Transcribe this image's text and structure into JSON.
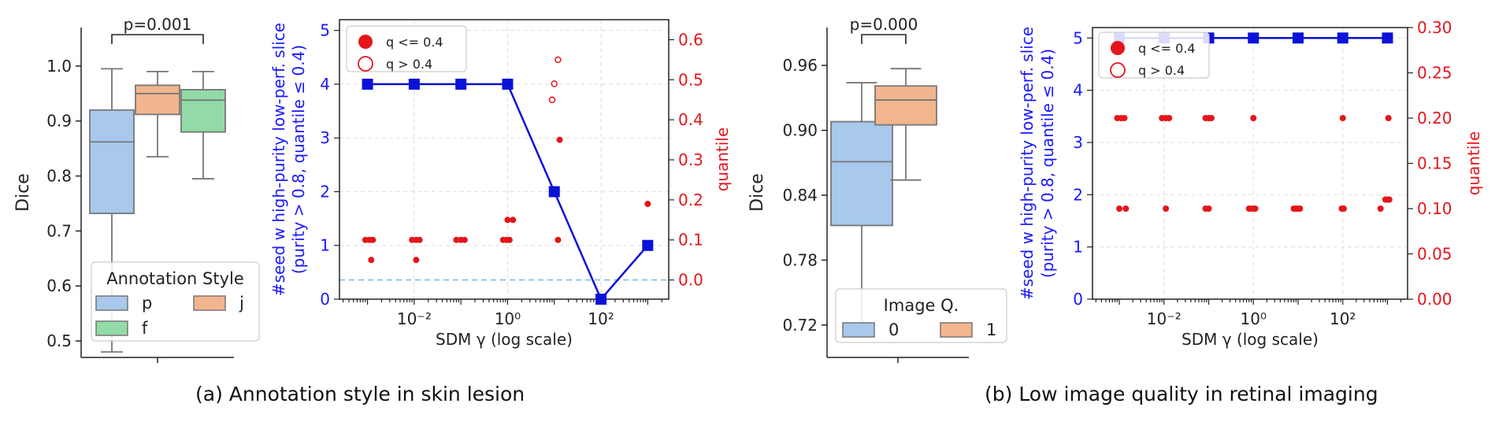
{
  "captions": {
    "a": "(a) Annotation style in skin lesion",
    "b": "(b) Low image quality in retinal imaging"
  },
  "colors": {
    "box_p": "#a8c8ec",
    "box_j": "#f2b58e",
    "box_f": "#92dba6",
    "box_0": "#a8c8ec",
    "box_1": "#f2b58e",
    "seed_line": "#0a12d8",
    "quantile_points": "#e4161b",
    "left_axis_text": "#1a1aff",
    "right_axis_text": "#e4161b",
    "threshold_line": "#86b8dc"
  },
  "chart_data": [
    {
      "type": "box",
      "ylabel": "Dice",
      "ylim": [
        0.47,
        1.07
      ],
      "yticks": [
        0.5,
        0.6,
        0.7,
        0.8,
        0.9,
        1.0
      ],
      "ytick_labels": [
        "0.5",
        "0.6",
        "0.7",
        "0.8",
        "0.9",
        "1.0"
      ],
      "annotation": "p=0.001",
      "legend_title": "Annotation Style",
      "legend_position": "lower-left",
      "boxes": [
        {
          "name": "p",
          "whislo": 0.48,
          "q1": 0.732,
          "median": 0.862,
          "q3": 0.92,
          "whishi": 0.995
        },
        {
          "name": "j",
          "whislo": 0.835,
          "q1": 0.912,
          "median": 0.95,
          "q3": 0.965,
          "whishi": 0.99
        },
        {
          "name": "f",
          "whislo": 0.795,
          "q1": 0.88,
          "median": 0.938,
          "q3": 0.957,
          "whishi": 0.99
        }
      ]
    },
    {
      "type": "line+scatter",
      "xlabel": "SDM γ (log scale)",
      "ylabel": "#seed w high-purity low-perf. slice (purity > 0.8, quantile ≤ 0.4)",
      "ylabel_line1": "#seed w high-purity low-perf. slice",
      "ylabel_line2": "(purity > 0.8, quantile ≤ 0.4)",
      "y2label": "quantile",
      "xscale": "log",
      "xlim_log10": [
        -3.6,
        3.45
      ],
      "xticks": [
        "10⁻²",
        "10⁰",
        "10²"
      ],
      "ylim": [
        0,
        5.2
      ],
      "yticks": [
        "0",
        "1",
        "2",
        "3",
        "4",
        "5"
      ],
      "y2lim": [
        -0.048,
        0.65
      ],
      "y2ticks": [
        "0.0",
        "0.1",
        "0.2",
        "0.3",
        "0.4",
        "0.5",
        "0.6"
      ],
      "threshold_y2": 0.0,
      "legend": {
        "position": "top-left",
        "entries": [
          "q <= 0.4",
          "q > 0.4"
        ]
      },
      "grid": true,
      "seed_series": {
        "x": [
          0.001,
          0.01,
          0.1,
          1,
          10,
          100,
          1000
        ],
        "y": [
          4,
          4,
          4,
          4,
          2,
          0,
          1
        ]
      },
      "quantile_filled": {
        "x": [
          0.0009,
          0.0011,
          0.0013,
          0.0012,
          0.009,
          0.011,
          0.013,
          0.011,
          0.08,
          0.1,
          0.12,
          0.8,
          0.95,
          1.1,
          1.0,
          1.3,
          13,
          12,
          1000
        ],
        "y": [
          0.1,
          0.1,
          0.1,
          0.05,
          0.1,
          0.1,
          0.1,
          0.05,
          0.1,
          0.1,
          0.1,
          0.1,
          0.1,
          0.1,
          0.15,
          0.15,
          0.35,
          0.1,
          0.19
        ]
      },
      "quantile_hollow": {
        "x": [
          9,
          10,
          12
        ],
        "y": [
          0.45,
          0.49,
          0.55
        ]
      }
    },
    {
      "type": "box",
      "ylabel": "Dice",
      "ylim": [
        0.69,
        0.995
      ],
      "yticks": [
        0.72,
        0.78,
        0.84,
        0.9,
        0.96
      ],
      "ytick_labels": [
        "0.72",
        "0.78",
        "0.84",
        "0.90",
        "0.96"
      ],
      "annotation": "p=0.000",
      "legend_title": "Image Q.",
      "legend_position": "lower-center",
      "boxes": [
        {
          "name": "0",
          "whislo": 0.72,
          "q1": 0.812,
          "median": 0.871,
          "q3": 0.908,
          "whishi": 0.944
        },
        {
          "name": "1",
          "whislo": 0.854,
          "q1": 0.905,
          "median": 0.928,
          "q3": 0.941,
          "whishi": 0.957
        }
      ]
    },
    {
      "type": "line+scatter",
      "xlabel": "SDM γ (log scale)",
      "ylabel": "#seed w high-purity low-perf. slice (purity > 0.8, quantile ≤ 0.4)",
      "ylabel_line1": "#seed w high-purity low-perf. slice",
      "ylabel_line2": "(purity > 0.8, quantile ≤ 0.4)",
      "y2label": "quantile",
      "xscale": "log",
      "xlim_log10": [
        -3.6,
        3.45
      ],
      "xticks": [
        "10⁻²",
        "10⁰",
        "10²"
      ],
      "ylim": [
        0,
        5.2
      ],
      "yticks": [
        "0",
        "1",
        "2",
        "3",
        "4",
        "5"
      ],
      "y2lim": [
        0,
        0.3
      ],
      "y2ticks": [
        "0.00",
        "0.05",
        "0.10",
        "0.15",
        "0.20",
        "0.25",
        "0.30"
      ],
      "legend": {
        "position": "top-left",
        "entries": [
          "q <= 0.4",
          "q > 0.4"
        ]
      },
      "grid": true,
      "seed_series": {
        "x": [
          0.001,
          0.01,
          0.1,
          1,
          10,
          100,
          1000
        ],
        "y": [
          5,
          5,
          5,
          5,
          5,
          5,
          5
        ]
      },
      "quantile_filled": {
        "x": [
          0.0009,
          0.0011,
          0.0013,
          0.009,
          0.011,
          0.013,
          0.085,
          0.1,
          0.115,
          1.0,
          100,
          1050,
          0.001,
          0.0014,
          0.011,
          0.085,
          0.1,
          0.8,
          0.95,
          1.1,
          8,
          9,
          10,
          11,
          95,
          105,
          700,
          900,
          1000,
          1100
        ],
        "y": [
          0.2,
          0.2,
          0.2,
          0.2,
          0.2,
          0.2,
          0.2,
          0.2,
          0.2,
          0.2,
          0.2,
          0.2,
          0.1,
          0.1,
          0.1,
          0.1,
          0.1,
          0.1,
          0.1,
          0.1,
          0.1,
          0.1,
          0.1,
          0.1,
          0.1,
          0.1,
          0.1,
          0.11,
          0.11,
          0.11
        ]
      },
      "quantile_hollow": {
        "x": [],
        "y": []
      }
    }
  ]
}
